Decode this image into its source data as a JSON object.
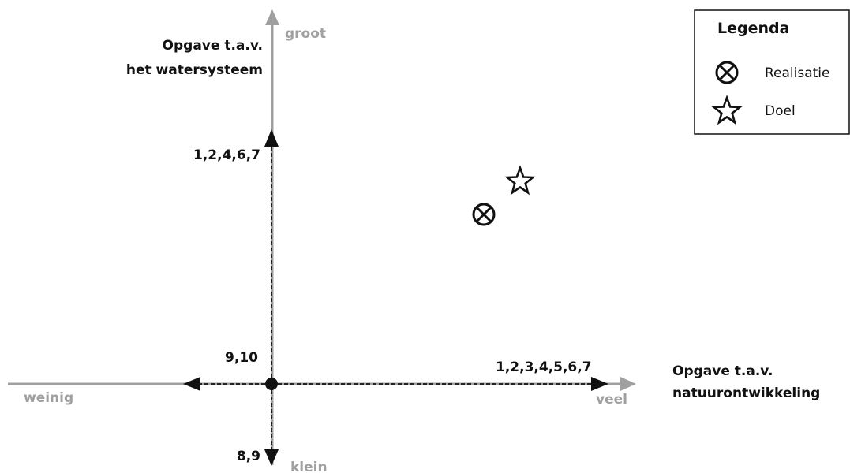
{
  "axes": {
    "vertical": {
      "title_line1": "Opgave t.a.v.",
      "title_line2": "het watersysteem",
      "top_label": "groot",
      "bottom_label": "klein"
    },
    "horizontal": {
      "title_line1": "Opgave t.a.v.",
      "title_line2": "natuurontwikkeling",
      "left_label": "weinig",
      "right_label": "veel"
    }
  },
  "arrow_labels": {
    "up": "1,2,4,6,7",
    "origin": "9,10",
    "right": "1,2,3,4,5,6,7",
    "down": "8,9"
  },
  "legend": {
    "title": "Legenda",
    "items": [
      {
        "icon": "circle-x-icon",
        "label": "Realisatie"
      },
      {
        "icon": "star-icon",
        "label": "Doel"
      }
    ]
  },
  "colors": {
    "axis": "#a0a0a0",
    "foreground": "#111111"
  }
}
